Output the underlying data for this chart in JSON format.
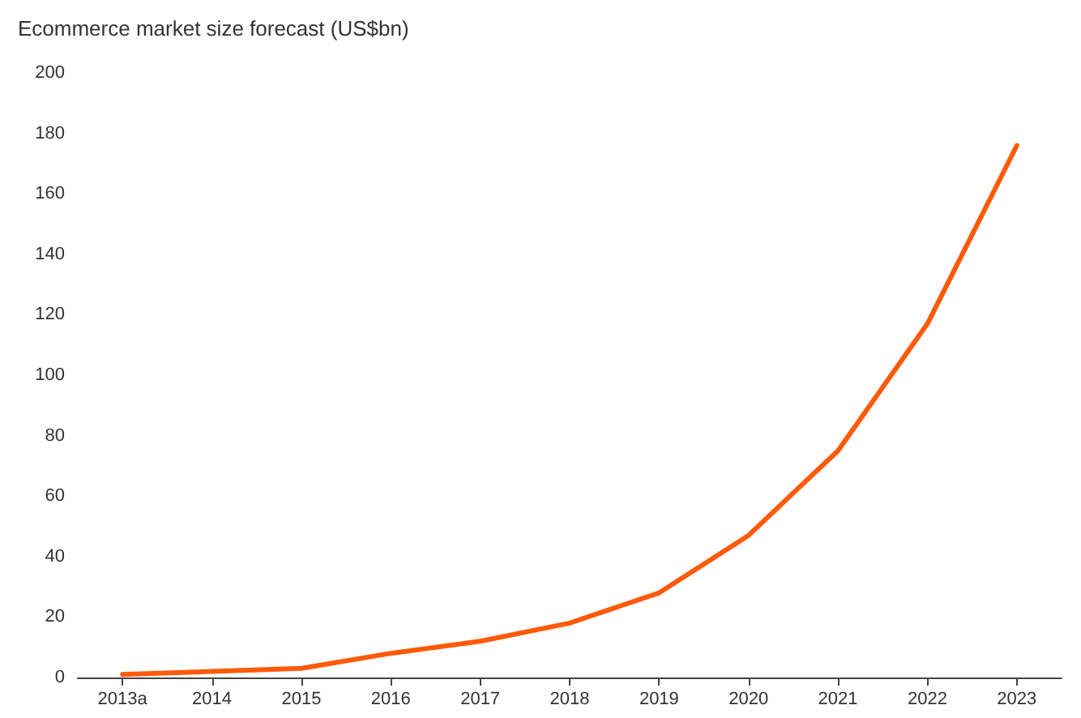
{
  "chart_data": {
    "type": "line",
    "title": "Ecommerce market size forecast (US$bn)",
    "categories": [
      "2013a",
      "2014",
      "2015",
      "2016",
      "2017",
      "2018",
      "2019",
      "2020",
      "2021",
      "2022",
      "2023"
    ],
    "series": [
      {
        "color": "#ff5a0a",
        "values": [
          1,
          2,
          3,
          8,
          12,
          18,
          28,
          47,
          75,
          117,
          176
        ]
      }
    ],
    "ylim": [
      0,
      200
    ],
    "yticks": [
      0,
      20,
      40,
      60,
      80,
      100,
      120,
      140,
      160,
      180,
      200
    ],
    "grid": false,
    "marker": "none",
    "line_style": "solid"
  }
}
